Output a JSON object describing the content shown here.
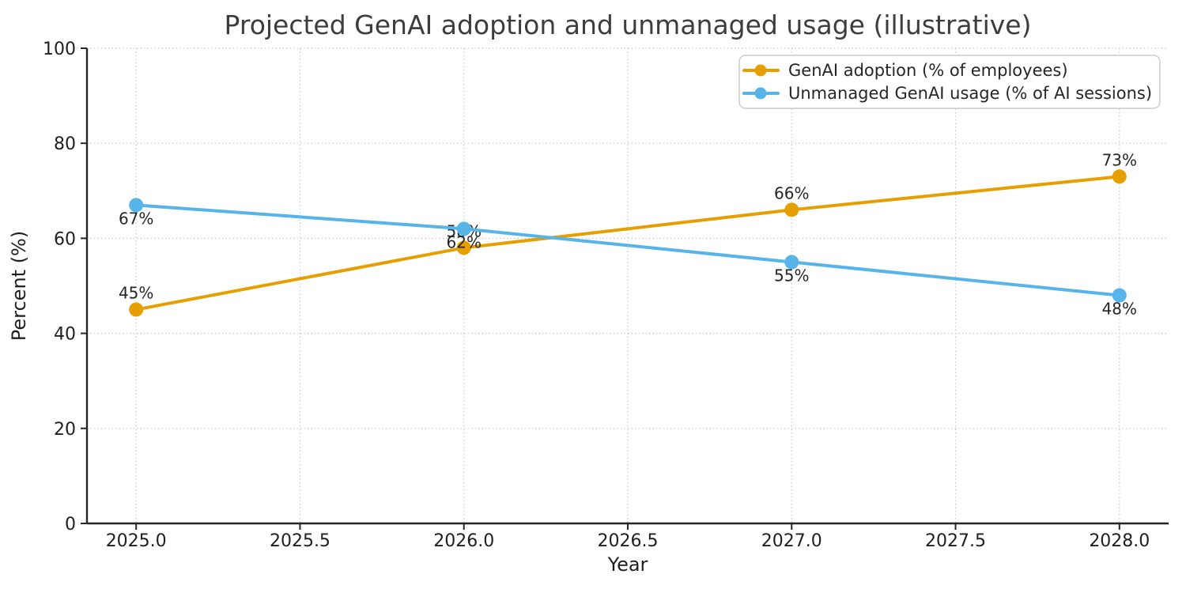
{
  "chart_data": {
    "type": "line",
    "title": "Projected GenAI adoption and unmanaged usage (illustrative)",
    "xlabel": "Year",
    "ylabel": "Percent (%)",
    "x": [
      2025,
      2026,
      2027,
      2028
    ],
    "series": [
      {
        "name": "GenAI adoption (% of employees)",
        "values": [
          45,
          58,
          66,
          73
        ],
        "point_labels": [
          "45%",
          "58%",
          "66%",
          "73%"
        ],
        "label_position": "above",
        "color": "#E69F00"
      },
      {
        "name": "Unmanaged GenAI usage (% of AI sessions)",
        "values": [
          67,
          62,
          55,
          48
        ],
        "point_labels": [
          "67%",
          "62%",
          "55%",
          "48%"
        ],
        "label_position": "below",
        "color": "#56B4E9"
      }
    ],
    "x_ticks": [
      2025.0,
      2025.5,
      2026.0,
      2026.5,
      2027.0,
      2027.5,
      2028.0
    ],
    "x_tick_labels": [
      "2025.0",
      "2025.5",
      "2026.0",
      "2026.5",
      "2027.0",
      "2027.5",
      "2028.0"
    ],
    "y_ticks": [
      0,
      20,
      40,
      60,
      80,
      100
    ],
    "y_tick_labels": [
      "0",
      "20",
      "40",
      "60",
      "80",
      "100"
    ],
    "xlim": [
      2024.85,
      2028.15
    ],
    "ylim": [
      0,
      100
    ],
    "grid": true,
    "grid_style": "dotted",
    "legend_position": "upper right"
  },
  "colors": {
    "background": "#ffffff",
    "grid": "#c9c9c9",
    "spine": "#262626",
    "tick": "#262626",
    "title_text": "#3d3d3d",
    "legend_border": "#cccccc",
    "legend_fill": "#ffffff",
    "adoption_line": "#E69F00",
    "unmanaged_line": "#56B4E9"
  }
}
